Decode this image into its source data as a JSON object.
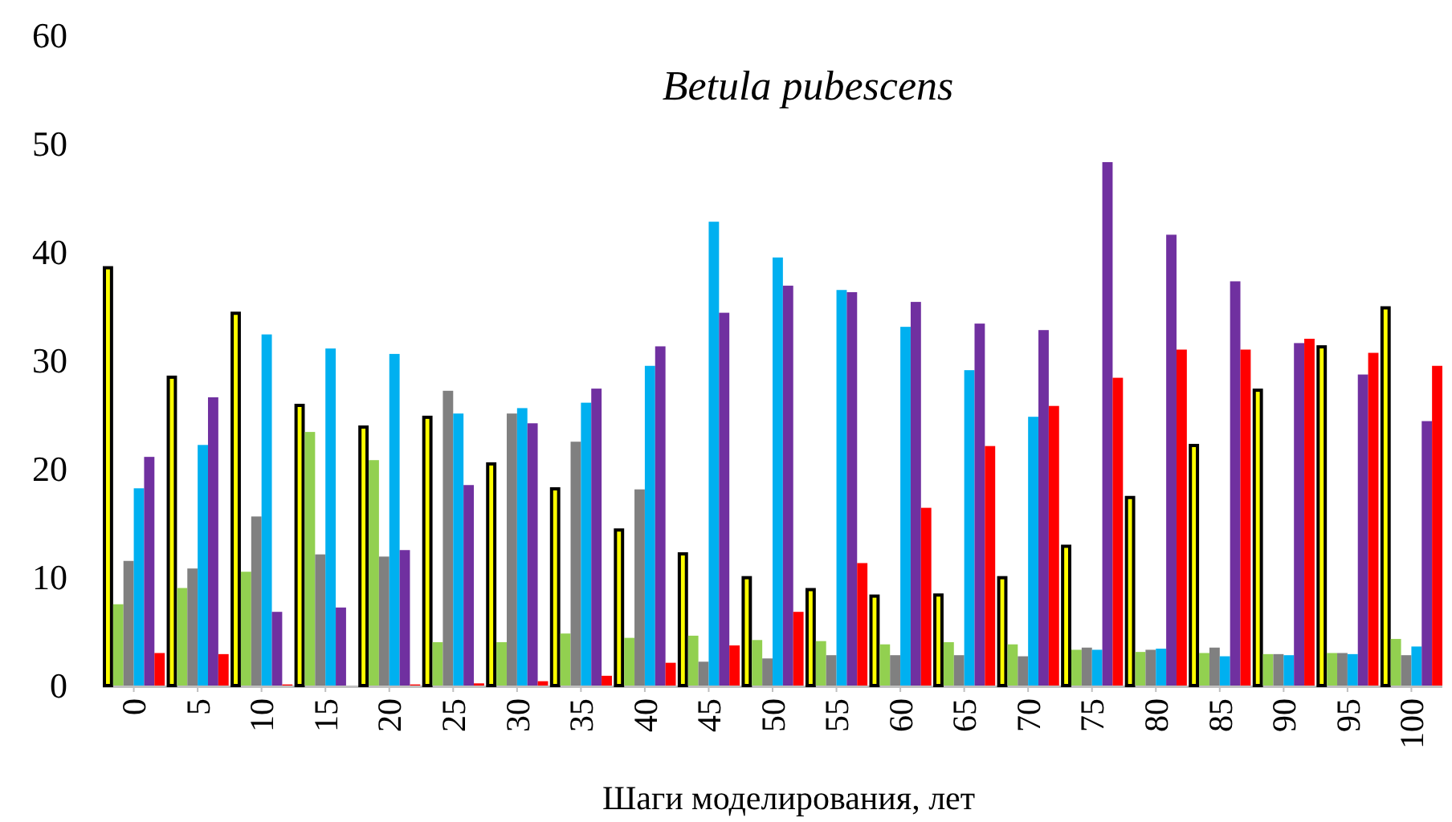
{
  "chart_data": {
    "type": "bar",
    "title": "Betula pubescens",
    "xlabel": "Шаги моделирования, лет",
    "categories": [
      "0",
      "5",
      "10",
      "15",
      "20",
      "25",
      "30",
      "35",
      "40",
      "45",
      "50",
      "55",
      "60",
      "65",
      "70",
      "75",
      "80",
      "85",
      "90",
      "95",
      "100"
    ],
    "series": [
      {
        "color": "#ffff00",
        "values": [
          38.7,
          28.6,
          34.5,
          26.0,
          24.0,
          24.9,
          20.6,
          18.3,
          14.5,
          12.3,
          10.1,
          9.0,
          8.4,
          8.5,
          10.1,
          13.0,
          17.5,
          22.3,
          27.4,
          31.4,
          35.0
        ]
      },
      {
        "color": "#92d050",
        "values": [
          7.5,
          9.0,
          10.5,
          23.4,
          20.8,
          4.0,
          4.0,
          4.8,
          4.4,
          4.6,
          4.2,
          4.1,
          3.8,
          4.0,
          3.8,
          3.3,
          3.1,
          3.0,
          2.9,
          3.0,
          4.3
        ]
      },
      {
        "color": "#808080",
        "values": [
          11.5,
          10.8,
          15.6,
          12.1,
          11.9,
          27.2,
          25.1,
          22.5,
          18.1,
          2.2,
          2.5,
          2.8,
          2.8,
          2.8,
          2.7,
          3.5,
          3.3,
          3.5,
          2.9,
          3.0,
          2.8
        ]
      },
      {
        "color": "#00b0f0",
        "values": [
          18.2,
          22.2,
          32.4,
          31.1,
          30.6,
          25.1,
          25.6,
          26.1,
          29.5,
          42.8,
          39.5,
          36.5,
          33.1,
          29.1,
          24.8,
          3.3,
          3.4,
          2.7,
          2.8,
          2.9,
          3.6
        ]
      },
      {
        "color": "#7030a0",
        "values": [
          21.1,
          26.6,
          6.8,
          7.2,
          12.5,
          18.5,
          24.2,
          27.4,
          31.3,
          34.4,
          36.9,
          36.3,
          35.4,
          33.4,
          32.8,
          48.3,
          41.6,
          37.3,
          31.6,
          28.7,
          24.4
        ]
      },
      {
        "color": "#ff0000",
        "values": [
          3.0,
          2.9,
          0.1,
          0,
          0.1,
          0.2,
          0.4,
          0.9,
          2.1,
          3.7,
          6.8,
          11.3,
          16.4,
          22.1,
          25.8,
          28.4,
          31.0,
          31.0,
          32.0,
          30.7,
          29.5
        ]
      }
    ],
    "ylim": [
      0,
      60
    ],
    "yticks": [
      0,
      10,
      20,
      30,
      40,
      50,
      60
    ],
    "grid": false
  }
}
